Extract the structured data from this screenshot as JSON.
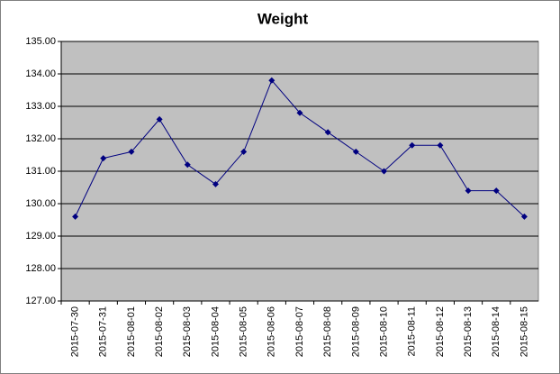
{
  "chart_data": {
    "type": "line",
    "title": "Weight",
    "categories": [
      "2015-07-30",
      "2015-07-31",
      "2015-08-01",
      "2015-08-02",
      "2015-08-03",
      "2015-08-04",
      "2015-08-05",
      "2015-08-06",
      "2015-08-07",
      "2015-08-08",
      "2015-08-09",
      "2015-08-10",
      "2015-08-11",
      "2015-08-12",
      "2015-08-13",
      "2015-08-14",
      "2015-08-15"
    ],
    "values": [
      129.6,
      131.4,
      131.6,
      132.6,
      131.2,
      130.6,
      131.6,
      133.8,
      132.8,
      132.2,
      131.6,
      131.0,
      131.8,
      131.8,
      130.4,
      130.4,
      129.6
    ],
    "color": "#000080",
    "ylim": [
      127,
      135
    ],
    "yticks": [
      {
        "value": 127,
        "label": "127.00"
      },
      {
        "value": 128,
        "label": "128.00"
      },
      {
        "value": 129,
        "label": "129.00"
      },
      {
        "value": 130,
        "label": "130.00"
      },
      {
        "value": 131,
        "label": "131.00"
      },
      {
        "value": 132,
        "label": "132.00"
      },
      {
        "value": 133,
        "label": "133.00"
      },
      {
        "value": 134,
        "label": "134.00"
      },
      {
        "value": 135,
        "label": "135.00"
      }
    ],
    "grid": true
  }
}
